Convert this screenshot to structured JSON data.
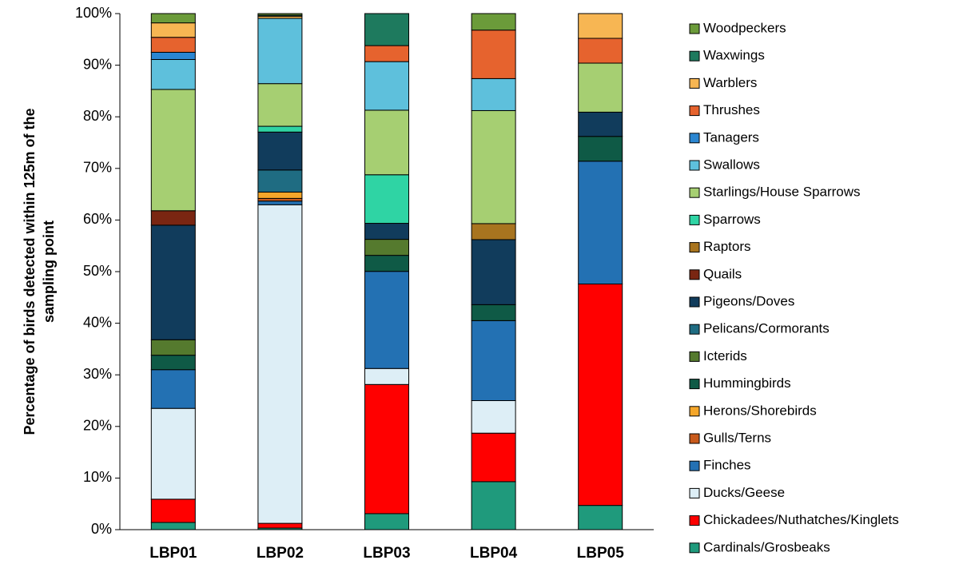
{
  "chart_data": {
    "type": "bar",
    "stacked": true,
    "title": "",
    "xlabel": "",
    "ylabel": "Percentage of birds detected within 125m of the sampling point",
    "ylabel_lines": [
      "Percentage of birds detected within 125m of the",
      "sampling point"
    ],
    "ylim": [
      0,
      100
    ],
    "y_ticks": [
      0,
      10,
      20,
      30,
      40,
      50,
      60,
      70,
      80,
      90,
      100
    ],
    "y_tick_suffix": "%",
    "grid": false,
    "legend_position": "right",
    "categories": [
      "LBP01",
      "LBP02",
      "LBP03",
      "LBP04",
      "LBP05"
    ],
    "series": [
      {
        "name": "Cardinals/Grosbeaks",
        "color": "#1f9a7c",
        "values": [
          1.4,
          0.3,
          3.1,
          9.3,
          4.7
        ]
      },
      {
        "name": "Chickadees/Nuthatches/Kinglets",
        "color": "#ff0000",
        "values": [
          4.5,
          0.9,
          25.0,
          9.4,
          42.9
        ]
      },
      {
        "name": "Ducks/Geese",
        "color": "#ddeef6",
        "values": [
          17.6,
          60.5,
          3.1,
          6.3,
          0
        ]
      },
      {
        "name": "Finches",
        "color": "#2371b3",
        "values": [
          7.5,
          0.7,
          18.8,
          15.5,
          23.8
        ]
      },
      {
        "name": "Gulls/Terns",
        "color": "#c85a1c",
        "values": [
          0,
          0.5,
          0,
          0,
          0
        ]
      },
      {
        "name": "Herons/Shorebirds",
        "color": "#f4a62a",
        "values": [
          0,
          1.2,
          0,
          0,
          0
        ]
      },
      {
        "name": "Hummingbirds",
        "color": "#0f5a46",
        "values": [
          2.8,
          0,
          3.1,
          3.1,
          4.8
        ]
      },
      {
        "name": "Icterids",
        "color": "#557a2e",
        "values": [
          3.0,
          0,
          3.1,
          0,
          0
        ]
      },
      {
        "name": "Pelicans/Cormorants",
        "color": "#1f6c82",
        "values": [
          0,
          4.2,
          0,
          0,
          0
        ]
      },
      {
        "name": "Pigeons/Doves",
        "color": "#113c5c",
        "values": [
          22.2,
          7.2,
          3.1,
          12.6,
          4.7
        ]
      },
      {
        "name": "Quails",
        "color": "#7a2612",
        "values": [
          2.8,
          0,
          0,
          0,
          0
        ]
      },
      {
        "name": "Raptors",
        "color": "#a8741f",
        "values": [
          0,
          0,
          0,
          3.1,
          0
        ]
      },
      {
        "name": "Sparrows",
        "color": "#2fd4a4",
        "values": [
          0,
          1.1,
          9.4,
          0,
          0
        ]
      },
      {
        "name": "Starlings/House Sparrows",
        "color": "#a6cf72",
        "values": [
          23.5,
          8.1,
          12.5,
          21.9,
          9.5
        ]
      },
      {
        "name": "Swallows",
        "color": "#5ec0dc",
        "values": [
          5.8,
          12.4,
          9.4,
          6.2,
          0
        ]
      },
      {
        "name": "Tanagers",
        "color": "#2b86d1",
        "values": [
          1.4,
          0,
          0,
          0,
          0
        ]
      },
      {
        "name": "Thrushes",
        "color": "#e6632e",
        "values": [
          2.9,
          0,
          3.1,
          9.4,
          4.8
        ]
      },
      {
        "name": "Warblers",
        "color": "#f7b653",
        "values": [
          2.8,
          0.4,
          0,
          0,
          4.8
        ]
      },
      {
        "name": "Waxwings",
        "color": "#1e7a5e",
        "values": [
          0,
          0.2,
          6.2,
          0,
          0
        ]
      },
      {
        "name": "Woodpeckers",
        "color": "#6b9b3a",
        "values": [
          1.8,
          0.3,
          0,
          3.2,
          0
        ]
      }
    ]
  }
}
